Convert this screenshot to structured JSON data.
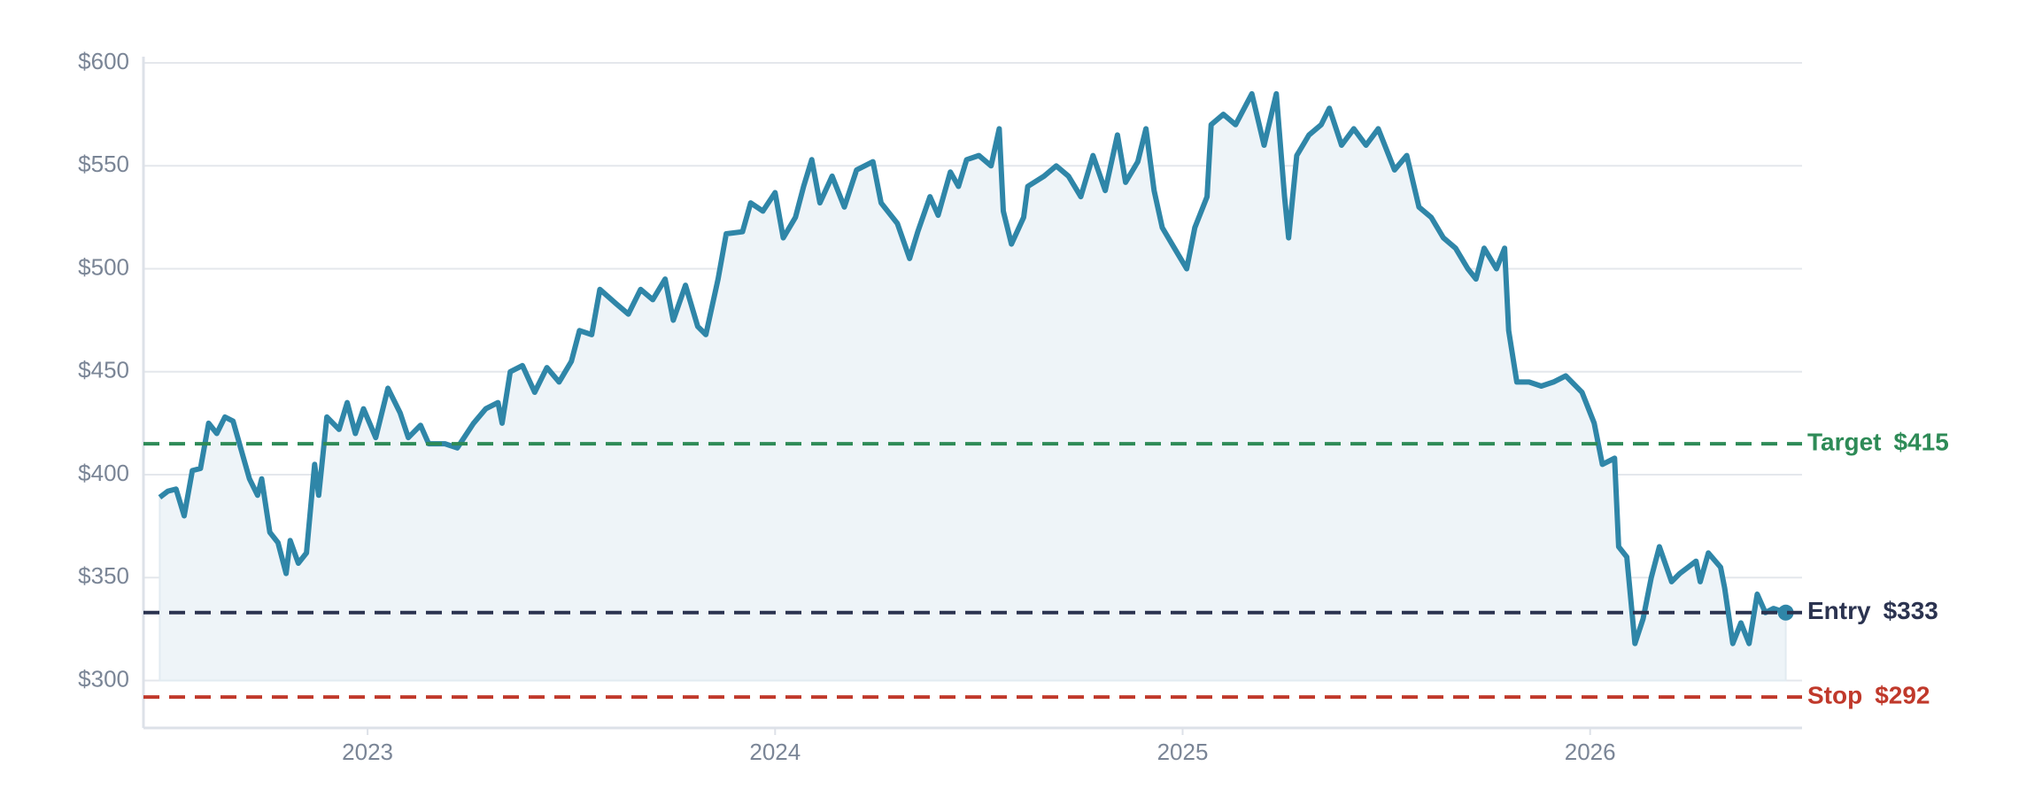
{
  "chart_data": {
    "type": "line",
    "x": [
      2022.49,
      2022.51,
      2022.53,
      2022.55,
      2022.57,
      2022.59,
      2022.61,
      2022.63,
      2022.65,
      2022.67,
      2022.69,
      2022.71,
      2022.73,
      2022.74,
      2022.76,
      2022.78,
      2022.8,
      2022.81,
      2022.83,
      2022.85,
      2022.87,
      2022.88,
      2022.9,
      2022.93,
      2022.95,
      2022.97,
      2022.99,
      2023.02,
      2023.05,
      2023.08,
      2023.1,
      2023.13,
      2023.15,
      2023.19,
      2023.22,
      2023.26,
      2023.29,
      2023.32,
      2023.33,
      2023.35,
      2023.38,
      2023.41,
      2023.44,
      2023.47,
      2023.5,
      2023.52,
      2023.55,
      2023.57,
      2023.61,
      2023.64,
      2023.67,
      2023.7,
      2023.73,
      2023.75,
      2023.78,
      2023.81,
      2023.83,
      2023.86,
      2023.88,
      2023.92,
      2023.94,
      2023.97,
      2024.0,
      2024.02,
      2024.05,
      2024.07,
      2024.09,
      2024.11,
      2024.14,
      2024.17,
      2024.2,
      2024.24,
      2024.26,
      2024.3,
      2024.33,
      2024.35,
      2024.38,
      2024.4,
      2024.43,
      2024.45,
      2024.47,
      2024.5,
      2024.53,
      2024.55,
      2024.56,
      2024.58,
      2024.61,
      2024.62,
      2024.66,
      2024.69,
      2024.72,
      2024.75,
      2024.78,
      2024.81,
      2024.84,
      2024.86,
      2024.89,
      2024.91,
      2024.93,
      2024.95,
      2024.98,
      2025.01,
      2025.03,
      2025.06,
      2025.07,
      2025.1,
      2025.13,
      2025.17,
      2025.2,
      2025.23,
      2025.25,
      2025.26,
      2025.28,
      2025.31,
      2025.34,
      2025.36,
      2025.39,
      2025.42,
      2025.45,
      2025.48,
      2025.52,
      2025.55,
      2025.58,
      2025.61,
      2025.64,
      2025.67,
      2025.7,
      2025.72,
      2025.74,
      2025.77,
      2025.79,
      2025.8,
      2025.82,
      2025.85,
      2025.88,
      2025.91,
      2025.94,
      2025.98,
      2026.01,
      2026.03,
      2026.06,
      2026.07,
      2026.09,
      2026.11,
      2026.13,
      2026.15,
      2026.17,
      2026.2,
      2026.22,
      2026.26,
      2026.27,
      2026.29,
      2026.32,
      2026.33,
      2026.35,
      2026.37,
      2026.39,
      2026.41,
      2026.43,
      2026.45,
      2026.48
    ],
    "values": [
      389,
      392,
      393,
      380,
      402,
      403,
      425,
      420,
      428,
      426,
      412,
      398,
      390,
      398,
      372,
      367,
      352,
      368,
      357,
      362,
      405,
      390,
      428,
      422,
      435,
      420,
      432,
      418,
      442,
      430,
      418,
      424,
      415,
      415,
      413,
      425,
      432,
      435,
      425,
      450,
      453,
      440,
      452,
      445,
      455,
      470,
      468,
      490,
      483,
      478,
      490,
      485,
      495,
      475,
      492,
      472,
      468,
      495,
      517,
      518,
      532,
      528,
      537,
      515,
      525,
      540,
      553,
      532,
      545,
      530,
      548,
      552,
      532,
      522,
      505,
      518,
      535,
      526,
      547,
      540,
      553,
      555,
      550,
      568,
      528,
      512,
      525,
      540,
      545,
      550,
      545,
      535,
      555,
      538,
      565,
      542,
      552,
      568,
      538,
      520,
      510,
      500,
      520,
      535,
      570,
      575,
      570,
      585,
      560,
      585,
      535,
      515,
      555,
      565,
      570,
      578,
      560,
      568,
      560,
      568,
      548,
      555,
      530,
      525,
      515,
      510,
      500,
      495,
      510,
      500,
      510,
      470,
      445,
      445,
      443,
      445,
      448,
      440,
      425,
      405,
      408,
      365,
      360,
      318,
      330,
      350,
      365,
      348,
      352,
      358,
      348,
      362,
      355,
      345,
      318,
      328,
      318,
      342,
      333,
      335,
      333
    ],
    "color": "#2f86a8",
    "area_color": "#eef4f8",
    "xlim": [
      2022.45,
      2026.52
    ],
    "xticks": [
      2023,
      2024,
      2025,
      2026
    ],
    "ylim": [
      277,
      600
    ],
    "yticks": [
      {
        "value": 300,
        "label": "$300"
      },
      {
        "value": 350,
        "label": "$350"
      },
      {
        "value": 400,
        "label": "$400"
      },
      {
        "value": 450,
        "label": "$450"
      },
      {
        "value": 500,
        "label": "$500"
      },
      {
        "value": 550,
        "label": "$550"
      },
      {
        "value": 600,
        "label": "$600"
      }
    ],
    "grid": true,
    "reference_lines": [
      {
        "name": "Target",
        "value": 415,
        "value_label": "$415",
        "color": "#2e8b57"
      },
      {
        "name": "Entry",
        "value": 333,
        "value_label": "$333",
        "color": "#2b3350"
      },
      {
        "name": "Stop",
        "value": 292,
        "value_label": "$292",
        "color": "#c0392b"
      }
    ]
  }
}
